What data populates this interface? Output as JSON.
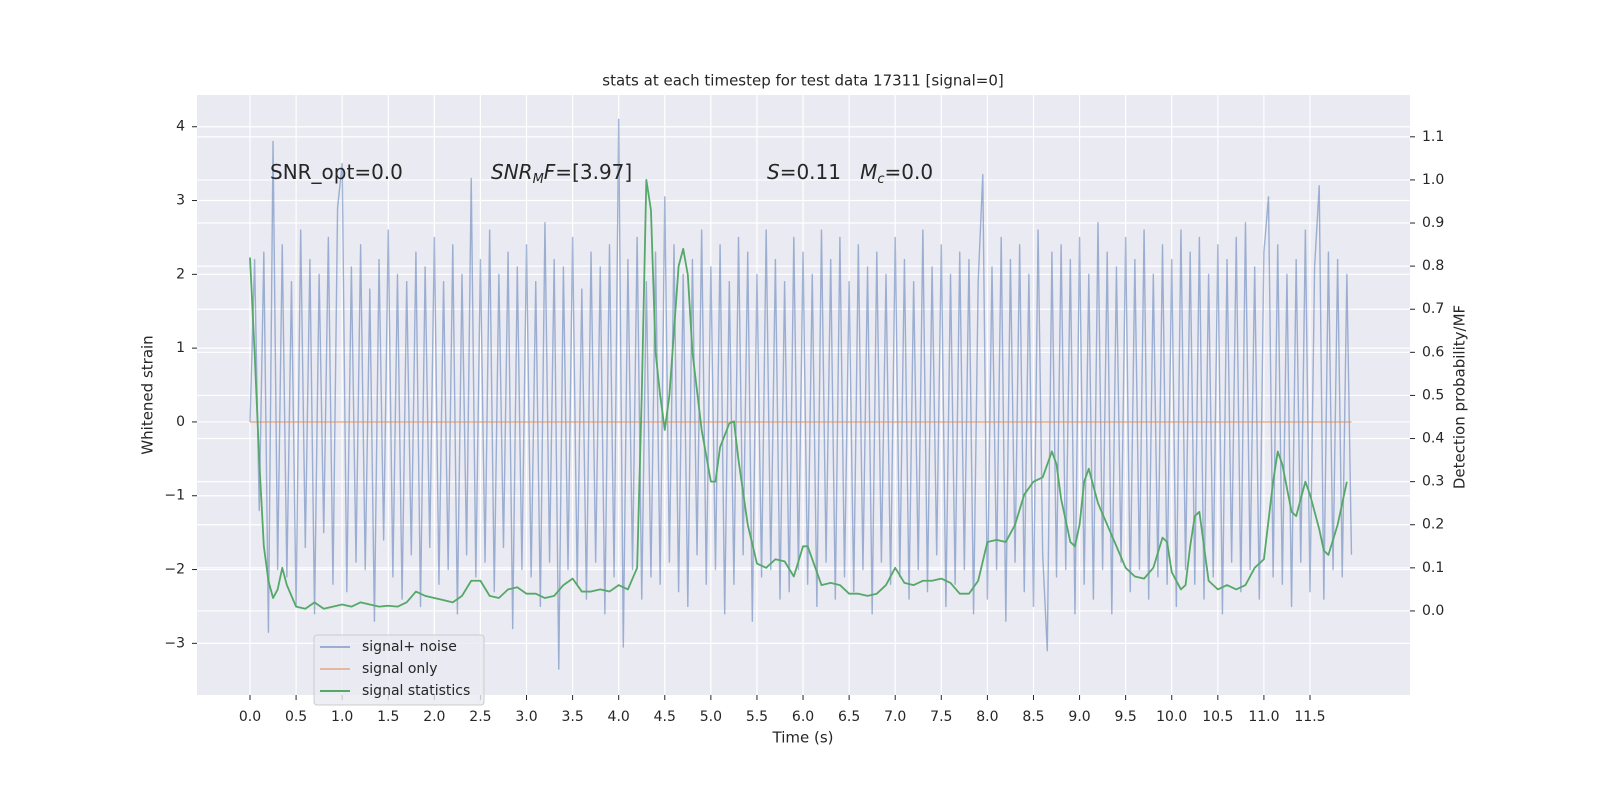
{
  "chart_data": {
    "type": "line",
    "title": "stats at each timestep for test data 17311 [signal=0]",
    "xlabel": "Time (s)",
    "ylabel": "Whitened strain",
    "y2label": "Detection probability/MF",
    "annotations": [
      {
        "segments": [
          {
            "text": "SNR_opt=0.0"
          }
        ]
      },
      {
        "segments": [
          {
            "text": "SNR",
            "italic": true
          },
          {
            "text": "M",
            "italic": true,
            "sub": true
          },
          {
            "text": "F",
            "italic": true
          },
          {
            "text": "=[3.97]"
          }
        ]
      },
      {
        "segments": [
          {
            "text": "S",
            "italic": true
          },
          {
            "text": "=0.11   "
          },
          {
            "text": "M",
            "italic": true
          },
          {
            "text": "c",
            "italic": true,
            "sub": true
          },
          {
            "text": "=0.0"
          }
        ]
      }
    ],
    "xlim": [
      -0.575,
      12.585
    ],
    "ylim": [
      -3.7,
      4.43
    ],
    "y2lim": [
      -0.195,
      1.197
    ],
    "xticks": [
      {
        "value": 0,
        "label": "0.0"
      },
      0.5,
      {
        "value": 1,
        "label": "1.0"
      },
      1.5,
      {
        "value": 2,
        "label": "2.0"
      },
      2.5,
      {
        "value": 3,
        "label": "3.0"
      },
      3.5,
      {
        "value": 4,
        "label": "4.0"
      },
      4.5,
      {
        "value": 5,
        "label": "5.0"
      },
      5.5,
      {
        "value": 6,
        "label": "6.0"
      },
      6.5,
      {
        "value": 7,
        "label": "7.0"
      },
      7.5,
      {
        "value": 8,
        "label": "8.0"
      },
      8.5,
      {
        "value": 9,
        "label": "9.0"
      },
      9.5,
      {
        "value": 10,
        "label": "10.0"
      },
      10.5,
      {
        "value": 11,
        "label": "11.0"
      },
      11.5
    ],
    "yticks": [
      {
        "value": -3,
        "label": "−3"
      },
      {
        "value": -2,
        "label": "−2"
      },
      {
        "value": -1,
        "label": "−1"
      },
      0,
      1,
      2,
      3,
      4
    ],
    "y2ticks": [
      {
        "value": 0,
        "label": "0.0"
      },
      0.1,
      0.2,
      0.3,
      0.4,
      0.5,
      0.6,
      0.7,
      0.8,
      0.9,
      {
        "value": 1,
        "label": "1.0"
      },
      1.1
    ],
    "grid": true,
    "legend": "lower left",
    "series": [
      {
        "name": "signal+ noise",
        "color": "#4c72b0",
        "opacity": 0.5,
        "x": [
          0,
          0.05,
          0.1,
          0.15,
          0.2,
          0.25,
          0.3,
          0.35,
          0.4,
          0.45,
          0.5,
          0.55,
          0.6,
          0.65,
          0.7,
          0.75,
          0.8,
          0.85,
          0.9,
          0.95,
          1,
          1.05,
          1.1,
          1.15,
          1.2,
          1.25,
          1.3,
          1.35,
          1.4,
          1.45,
          1.5,
          1.55,
          1.6,
          1.65,
          1.7,
          1.75,
          1.8,
          1.85,
          1.9,
          1.95,
          2,
          2.05,
          2.1,
          2.15,
          2.2,
          2.25,
          2.3,
          2.35,
          2.4,
          2.45,
          2.5,
          2.55,
          2.6,
          2.65,
          2.7,
          2.75,
          2.8,
          2.85,
          2.9,
          2.95,
          3,
          3.05,
          3.1,
          3.15,
          3.2,
          3.25,
          3.3,
          3.35,
          3.4,
          3.45,
          3.5,
          3.55,
          3.6,
          3.65,
          3.7,
          3.75,
          3.8,
          3.85,
          3.9,
          3.95,
          4,
          4.05,
          4.1,
          4.15,
          4.2,
          4.25,
          4.3,
          4.35,
          4.4,
          4.45,
          4.5,
          4.55,
          4.6,
          4.65,
          4.7,
          4.75,
          4.8,
          4.85,
          4.9,
          4.95,
          5,
          5.05,
          5.1,
          5.15,
          5.2,
          5.25,
          5.3,
          5.35,
          5.4,
          5.45,
          5.5,
          5.55,
          5.6,
          5.65,
          5.7,
          5.75,
          5.8,
          5.85,
          5.9,
          5.95,
          6,
          6.05,
          6.1,
          6.15,
          6.2,
          6.25,
          6.3,
          6.35,
          6.4,
          6.45,
          6.5,
          6.55,
          6.6,
          6.65,
          6.7,
          6.75,
          6.8,
          6.85,
          6.9,
          6.95,
          7,
          7.05,
          7.1,
          7.15,
          7.2,
          7.25,
          7.3,
          7.35,
          7.4,
          7.45,
          7.5,
          7.55,
          7.6,
          7.65,
          7.7,
          7.75,
          7.8,
          7.85,
          7.9,
          7.95,
          8,
          8.05,
          8.1,
          8.15,
          8.2,
          8.25,
          8.3,
          8.35,
          8.4,
          8.45,
          8.5,
          8.55,
          8.6,
          8.65,
          8.7,
          8.75,
          8.8,
          8.85,
          8.9,
          8.95,
          9,
          9.05,
          9.1,
          9.15,
          9.2,
          9.25,
          9.3,
          9.35,
          9.4,
          9.45,
          9.5,
          9.55,
          9.6,
          9.65,
          9.7,
          9.75,
          9.8,
          9.85,
          9.9,
          9.95,
          10,
          10.05,
          10.1,
          10.15,
          10.2,
          10.25,
          10.3,
          10.35,
          10.4,
          10.45,
          10.5,
          10.55,
          10.6,
          10.65,
          10.7,
          10.75,
          10.8,
          10.85,
          10.9,
          10.95,
          11,
          11.05,
          11.1,
          11.15,
          11.2,
          11.25,
          11.3,
          11.35,
          11.4,
          11.45,
          11.5,
          11.55,
          11.6,
          11.65,
          11.7,
          11.75,
          11.8,
          11.85,
          11.9,
          11.95
        ],
        "values": [
          0,
          2.2,
          -1.2,
          2.3,
          -2.85,
          3.8,
          -2.0,
          2.4,
          -2.1,
          1.9,
          -2.5,
          2.6,
          -1.7,
          2.2,
          -2.6,
          2.0,
          -1.5,
          2.5,
          -2.2,
          2.9,
          3.5,
          -2.3,
          2.1,
          -1.9,
          2.4,
          -2.0,
          1.8,
          -2.7,
          2.2,
          -1.6,
          2.6,
          -2.1,
          2.0,
          -2.4,
          1.9,
          -1.8,
          2.3,
          -2.5,
          2.1,
          -1.7,
          2.5,
          -2.2,
          1.9,
          -2.0,
          2.4,
          -2.6,
          2.0,
          -1.8,
          3.3,
          -2.1,
          2.2,
          -1.9,
          2.6,
          -2.3,
          2.0,
          -1.7,
          2.3,
          -2.8,
          2.1,
          -2.0,
          2.4,
          -2.1,
          1.9,
          -2.5,
          2.7,
          -1.9,
          2.2,
          -3.35,
          2.1,
          -2.0,
          2.5,
          -2.2,
          1.8,
          -2.4,
          2.3,
          -1.9,
          2.1,
          -2.6,
          2.4,
          -2.1,
          4.1,
          -3.05,
          2.2,
          -2.0,
          2.5,
          -2.4,
          1.9,
          -2.1,
          2.3,
          -2.2,
          3.05,
          -1.9,
          2.4,
          -2.3,
          2.0,
          -2.5,
          2.2,
          -1.8,
          2.6,
          -2.2,
          2.1,
          -2.0,
          2.4,
          -2.6,
          1.9,
          -2.2,
          2.5,
          -1.8,
          2.3,
          -2.7,
          2.0,
          -2.1,
          2.6,
          -2.0,
          2.2,
          -2.4,
          1.9,
          -2.3,
          2.5,
          -2.0,
          2.3,
          -2.2,
          2.0,
          -2.5,
          2.6,
          -1.9,
          2.2,
          -2.4,
          2.5,
          -2.1,
          1.9,
          -2.3,
          2.4,
          -2.0,
          2.1,
          -2.6,
          2.3,
          -1.9,
          2.0,
          -2.2,
          2.5,
          -2.1,
          2.2,
          -2.4,
          1.9,
          -2.0,
          2.6,
          -2.3,
          2.1,
          -1.8,
          2.4,
          -2.5,
          2.0,
          -2.2,
          2.3,
          -2.0,
          2.2,
          -2.6,
          1.9,
          3.35,
          -2.4,
          2.1,
          -2.0,
          2.5,
          -2.7,
          2.2,
          -1.9,
          2.4,
          -2.3,
          2.0,
          -2.5,
          2.6,
          -1.8,
          -3.1,
          2.3,
          -2.1,
          2.4,
          -2.0,
          2.2,
          -2.6,
          2.5,
          -2.2,
          2.0,
          -2.4,
          2.7,
          -2.0,
          2.3,
          -2.6,
          2.1,
          -1.9,
          2.5,
          -2.3,
          2.2,
          -2.0,
          2.6,
          -2.4,
          2.0,
          -2.1,
          2.4,
          -2.2,
          2.2,
          -2.5,
          2.6,
          -2.0,
          2.3,
          -2.2,
          2.5,
          -2.4,
          2.0,
          -2.1,
          2.4,
          -2.6,
          2.2,
          -1.9,
          2.5,
          -2.3,
          2.7,
          -2.0,
          2.1,
          -2.4,
          2.3,
          3.05,
          -2.1,
          2.4,
          -2.2,
          2.0,
          -2.5,
          2.2,
          -1.9,
          2.6,
          -2.3,
          2.1,
          3.2,
          -2.4,
          2.3,
          -2.0,
          2.2,
          -2.1,
          2.0,
          -1.8
        ]
      },
      {
        "name": "signal only",
        "color": "#dd8452",
        "opacity": 0.5,
        "x": [
          0,
          11.95
        ],
        "values": [
          0,
          0
        ]
      },
      {
        "name": "signal statistics",
        "color": "#55a868",
        "opacity": 1,
        "axis": "y2",
        "x": [
          0,
          0.05,
          0.1,
          0.15,
          0.2,
          0.25,
          0.3,
          0.35,
          0.4,
          0.5,
          0.6,
          0.7,
          0.8,
          0.9,
          1,
          1.1,
          1.2,
          1.3,
          1.4,
          1.5,
          1.6,
          1.7,
          1.8,
          1.9,
          2,
          2.1,
          2.2,
          2.3,
          2.4,
          2.5,
          2.6,
          2.7,
          2.8,
          2.9,
          3,
          3.1,
          3.2,
          3.3,
          3.4,
          3.5,
          3.6,
          3.7,
          3.8,
          3.9,
          4,
          4.1,
          4.2,
          4.25,
          4.3,
          4.35,
          4.4,
          4.45,
          4.5,
          4.55,
          4.6,
          4.65,
          4.7,
          4.75,
          4.8,
          4.9,
          5,
          5.05,
          5.1,
          5.2,
          5.25,
          5.3,
          5.4,
          5.5,
          5.6,
          5.7,
          5.8,
          5.9,
          6,
          6.05,
          6.1,
          6.2,
          6.3,
          6.4,
          6.5,
          6.6,
          6.7,
          6.8,
          6.9,
          7,
          7.1,
          7.2,
          7.3,
          7.4,
          7.5,
          7.6,
          7.7,
          7.8,
          7.9,
          8,
          8.1,
          8.2,
          8.3,
          8.4,
          8.5,
          8.6,
          8.7,
          8.75,
          8.8,
          8.9,
          8.95,
          9,
          9.05,
          9.1,
          9.2,
          9.3,
          9.4,
          9.5,
          9.6,
          9.7,
          9.8,
          9.9,
          9.95,
          10,
          10.1,
          10.15,
          10.2,
          10.25,
          10.3,
          10.35,
          10.4,
          10.5,
          10.6,
          10.7,
          10.8,
          10.9,
          11,
          11.1,
          11.15,
          11.2,
          11.3,
          11.35,
          11.4,
          11.45,
          11.5,
          11.6,
          11.65,
          11.7,
          11.8,
          11.9
        ],
        "values": [
          0.82,
          0.6,
          0.35,
          0.15,
          0.07,
          0.03,
          0.05,
          0.1,
          0.06,
          0.01,
          0.005,
          0.02,
          0.005,
          0.01,
          0.015,
          0.01,
          0.02,
          0.015,
          0.01,
          0.012,
          0.01,
          0.02,
          0.045,
          0.035,
          0.03,
          0.025,
          0.02,
          0.035,
          0.07,
          0.07,
          0.035,
          0.03,
          0.05,
          0.055,
          0.04,
          0.04,
          0.03,
          0.035,
          0.06,
          0.075,
          0.045,
          0.045,
          0.05,
          0.045,
          0.06,
          0.05,
          0.1,
          0.5,
          1.0,
          0.93,
          0.6,
          0.5,
          0.42,
          0.5,
          0.65,
          0.8,
          0.84,
          0.78,
          0.6,
          0.42,
          0.3,
          0.3,
          0.38,
          0.435,
          0.44,
          0.35,
          0.2,
          0.11,
          0.1,
          0.12,
          0.115,
          0.08,
          0.15,
          0.15,
          0.12,
          0.06,
          0.065,
          0.06,
          0.04,
          0.04,
          0.035,
          0.04,
          0.06,
          0.1,
          0.065,
          0.06,
          0.07,
          0.07,
          0.075,
          0.065,
          0.04,
          0.04,
          0.07,
          0.16,
          0.165,
          0.16,
          0.2,
          0.27,
          0.3,
          0.31,
          0.37,
          0.34,
          0.26,
          0.16,
          0.15,
          0.2,
          0.3,
          0.33,
          0.25,
          0.2,
          0.15,
          0.1,
          0.08,
          0.075,
          0.1,
          0.17,
          0.16,
          0.09,
          0.05,
          0.06,
          0.15,
          0.22,
          0.23,
          0.15,
          0.07,
          0.05,
          0.06,
          0.05,
          0.06,
          0.1,
          0.12,
          0.3,
          0.37,
          0.34,
          0.23,
          0.22,
          0.26,
          0.3,
          0.27,
          0.19,
          0.14,
          0.13,
          0.2,
          0.3
        ]
      }
    ]
  }
}
